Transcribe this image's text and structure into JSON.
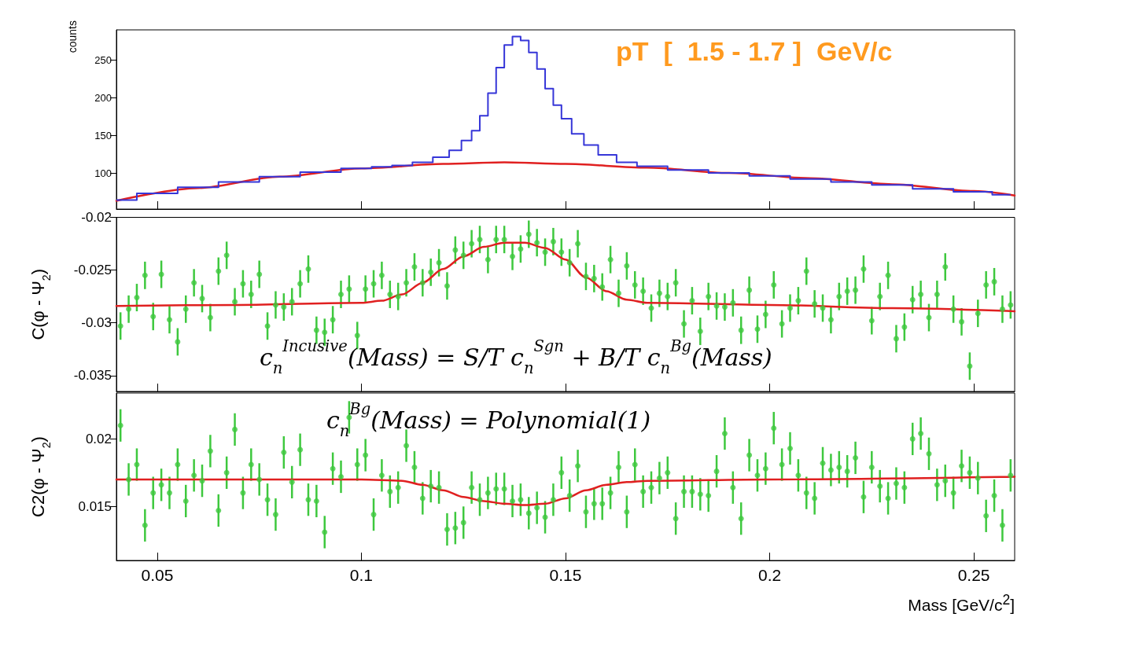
{
  "chart_data": [
    {
      "type": "step",
      "ylabel": "counts",
      "annotations": [
        "pT  [  1.5 - 1.7 ]  GeV/c"
      ],
      "xlim": [
        0.04,
        0.26
      ],
      "xticks": [
        0.05,
        0.1,
        0.15,
        0.2,
        0.25
      ],
      "ylim": [
        52,
        290
      ],
      "yticks": [
        100,
        150,
        200,
        250
      ],
      "tick_labels": "y",
      "series": [
        {
          "color": "#3636d8",
          "x": [
            0.04,
            0.05,
            0.06,
            0.07,
            0.08,
            0.09,
            0.1,
            0.105,
            0.11,
            0.115,
            0.12,
            0.123,
            0.126,
            0.128,
            0.13,
            0.132,
            0.134,
            0.136,
            0.138,
            0.14,
            0.142,
            0.144,
            0.146,
            0.148,
            0.15,
            0.153,
            0.156,
            0.16,
            0.165,
            0.17,
            0.18,
            0.19,
            0.2,
            0.21,
            0.22,
            0.23,
            0.24,
            0.25,
            0.259
          ],
          "values": [
            64,
            73,
            81,
            88,
            95,
            101,
            106,
            108,
            110,
            114,
            121,
            130,
            143,
            156,
            176,
            206,
            240,
            270,
            281,
            276,
            260,
            238,
            212,
            190,
            172,
            152,
            137,
            124,
            114,
            109,
            104,
            100,
            96,
            92,
            88,
            84,
            79,
            75,
            71
          ]
        },
        {
          "type": "line",
          "color": "#e02020",
          "x": [
            0.04,
            0.06,
            0.08,
            0.1,
            0.12,
            0.135,
            0.15,
            0.17,
            0.19,
            0.21,
            0.23,
            0.25,
            0.26
          ],
          "values": [
            63,
            80,
            95,
            106,
            112,
            114,
            112,
            107,
            100,
            93,
            85,
            76,
            70
          ]
        }
      ]
    },
    {
      "type": "scatter",
      "ylabel": "C(φ - Ψ$_{2}$)",
      "annotations": [
        "c$_{n}$$^{Incusive}$(Mass) = S/T c$_{n}$$^{Sgn}$ + B/T c$_{n}$$^{Bg}$(Mass)"
      ],
      "xlim": [
        0.04,
        0.26
      ],
      "xticks": [
        0.05,
        0.1,
        0.15,
        0.2,
        0.25
      ],
      "ylim": [
        -0.0365,
        -0.02
      ],
      "yticks": [
        -0.02,
        -0.025,
        -0.03,
        -0.035
      ],
      "tick_labels": "y",
      "x": [
        0.041,
        0.043,
        0.045,
        0.047,
        0.049,
        0.051,
        0.053,
        0.055,
        0.057,
        0.059,
        0.061,
        0.063,
        0.065,
        0.067,
        0.069,
        0.071,
        0.073,
        0.075,
        0.077,
        0.079,
        0.081,
        0.083,
        0.085,
        0.087,
        0.089,
        0.091,
        0.093,
        0.095,
        0.097,
        0.099,
        0.101,
        0.103,
        0.105,
        0.107,
        0.109,
        0.111,
        0.113,
        0.115,
        0.117,
        0.119,
        0.121,
        0.123,
        0.125,
        0.127,
        0.129,
        0.131,
        0.133,
        0.135,
        0.137,
        0.139,
        0.141,
        0.143,
        0.145,
        0.147,
        0.149,
        0.151,
        0.153,
        0.155,
        0.157,
        0.159,
        0.161,
        0.163,
        0.165,
        0.167,
        0.169,
        0.171,
        0.173,
        0.175,
        0.177,
        0.179,
        0.181,
        0.183,
        0.185,
        0.187,
        0.189,
        0.191,
        0.193,
        0.195,
        0.197,
        0.199,
        0.201,
        0.203,
        0.205,
        0.207,
        0.209,
        0.211,
        0.213,
        0.215,
        0.217,
        0.219,
        0.221,
        0.223,
        0.225,
        0.227,
        0.229,
        0.231,
        0.233,
        0.235,
        0.237,
        0.239,
        0.241,
        0.243,
        0.245,
        0.247,
        0.249,
        0.251,
        0.253,
        0.255,
        0.257,
        0.259
      ],
      "series": [
        {
          "color": "#3ec83e",
          "values": [
            -0.0303,
            -0.0287,
            -0.0276,
            -0.0255,
            -0.0294,
            -0.0254,
            -0.0297,
            -0.0318,
            -0.0287,
            -0.0262,
            -0.0277,
            -0.0295,
            -0.0251,
            -0.0236,
            -0.028,
            -0.0263,
            -0.0273,
            -0.0254,
            -0.0303,
            -0.0283,
            -0.0285,
            -0.028,
            -0.0263,
            -0.0249,
            -0.0307,
            -0.0309,
            -0.0297,
            -0.0273,
            -0.0268,
            -0.0312,
            -0.0268,
            -0.0263,
            -0.0255,
            -0.0273,
            -0.0275,
            -0.0262,
            -0.0247,
            -0.0262,
            -0.0252,
            -0.0243,
            -0.0265,
            -0.0231,
            -0.0236,
            -0.0225,
            -0.0221,
            -0.024,
            -0.0221,
            -0.0221,
            -0.0237,
            -0.023,
            -0.0216,
            -0.0224,
            -0.0233,
            -0.0223,
            -0.0233,
            -0.0243,
            -0.0225,
            -0.0256,
            -0.0258,
            -0.0266,
            -0.024,
            -0.0272,
            -0.0246,
            -0.0264,
            -0.027,
            -0.0286,
            -0.0272,
            -0.0275,
            -0.0262,
            -0.0301,
            -0.0279,
            -0.0308,
            -0.0275,
            -0.0284,
            -0.0285,
            -0.0281,
            -0.0307,
            -0.0269,
            -0.0306,
            -0.0292,
            -0.0264,
            -0.0301,
            -0.0286,
            -0.0279,
            -0.0251,
            -0.0282,
            -0.0286,
            -0.0297,
            -0.0275,
            -0.027,
            -0.0269,
            -0.0249,
            -0.0298,
            -0.0275,
            -0.0255,
            -0.0315,
            -0.0304,
            -0.0278,
            -0.0273,
            -0.0295,
            -0.0273,
            -0.0247,
            -0.0287,
            -0.0299,
            -0.0341,
            -0.0291,
            -0.0264,
            -0.0261,
            -0.0287,
            -0.0283
          ],
          "errors": [
            0.0013,
            0.0013,
            0.0013,
            0.0013,
            0.0013,
            0.0013,
            0.0013,
            0.0013,
            0.0013,
            0.0013,
            0.0013,
            0.0013,
            0.0013,
            0.0013,
            0.0013,
            0.0013,
            0.0013,
            0.0013,
            0.0013,
            0.0013,
            0.0013,
            0.0013,
            0.0013,
            0.0013,
            0.0013,
            0.0013,
            0.0013,
            0.0013,
            0.0013,
            0.0013,
            0.0013,
            0.0013,
            0.0013,
            0.0013,
            0.0013,
            0.0013,
            0.0013,
            0.0013,
            0.0013,
            0.0013,
            0.0013,
            0.0013,
            0.0013,
            0.0013,
            0.0013,
            0.0013,
            0.0013,
            0.0013,
            0.0013,
            0.0013,
            0.0013,
            0.0013,
            0.0013,
            0.0013,
            0.0013,
            0.0013,
            0.0013,
            0.0013,
            0.0013,
            0.0013,
            0.0013,
            0.0013,
            0.0013,
            0.0013,
            0.0013,
            0.0013,
            0.0013,
            0.0013,
            0.0013,
            0.0013,
            0.0013,
            0.0013,
            0.0013,
            0.0013,
            0.0013,
            0.0013,
            0.0013,
            0.0013,
            0.0013,
            0.0013,
            0.0013,
            0.0013,
            0.0013,
            0.0013,
            0.0013,
            0.0013,
            0.0013,
            0.0013,
            0.0013,
            0.0013,
            0.0013,
            0.0013,
            0.0013,
            0.0013,
            0.0013,
            0.0013,
            0.0013,
            0.0013,
            0.0013,
            0.0013,
            0.0013,
            0.0013,
            0.0013,
            0.0013,
            0.0013,
            0.0013,
            0.0013,
            0.0013,
            0.0013,
            0.0013
          ]
        },
        {
          "type": "line",
          "color": "#e02020",
          "x": [
            0.04,
            0.07,
            0.1,
            0.105,
            0.11,
            0.115,
            0.12,
            0.125,
            0.13,
            0.135,
            0.14,
            0.145,
            0.15,
            0.155,
            0.16,
            0.165,
            0.17,
            0.2,
            0.23,
            0.26
          ],
          "values": [
            -0.0284,
            -0.0283,
            -0.0281,
            -0.0279,
            -0.0273,
            -0.0262,
            -0.0249,
            -0.0237,
            -0.0228,
            -0.0224,
            -0.0224,
            -0.0229,
            -0.024,
            -0.0257,
            -0.027,
            -0.0278,
            -0.0281,
            -0.0283,
            -0.0286,
            -0.0289
          ]
        }
      ]
    },
    {
      "type": "scatter",
      "ylabel": "C2(φ - Ψ$_{2}$)",
      "xlabel": "Mass  [GeV/c$^{2}$]",
      "annotations": [
        "c$_{n}$$^{Bg}$(Mass) = Polynomial(1)"
      ],
      "xlim": [
        0.04,
        0.26
      ],
      "xticks": [
        0.05,
        0.1,
        0.15,
        0.2,
        0.25
      ],
      "ylim": [
        0.011,
        0.0234
      ],
      "yticks": [
        0.015,
        0.02
      ],
      "x": [
        0.041,
        0.043,
        0.045,
        0.047,
        0.049,
        0.051,
        0.053,
        0.055,
        0.057,
        0.059,
        0.061,
        0.063,
        0.065,
        0.067,
        0.069,
        0.071,
        0.073,
        0.075,
        0.077,
        0.079,
        0.081,
        0.083,
        0.085,
        0.087,
        0.089,
        0.091,
        0.093,
        0.095,
        0.097,
        0.099,
        0.101,
        0.103,
        0.105,
        0.107,
        0.109,
        0.111,
        0.113,
        0.115,
        0.117,
        0.119,
        0.121,
        0.123,
        0.125,
        0.127,
        0.129,
        0.131,
        0.133,
        0.135,
        0.137,
        0.139,
        0.141,
        0.143,
        0.145,
        0.147,
        0.149,
        0.151,
        0.153,
        0.155,
        0.157,
        0.159,
        0.161,
        0.163,
        0.165,
        0.167,
        0.169,
        0.171,
        0.173,
        0.175,
        0.177,
        0.179,
        0.181,
        0.183,
        0.185,
        0.187,
        0.189,
        0.191,
        0.193,
        0.195,
        0.197,
        0.199,
        0.201,
        0.203,
        0.205,
        0.207,
        0.209,
        0.211,
        0.213,
        0.215,
        0.217,
        0.219,
        0.221,
        0.223,
        0.225,
        0.227,
        0.229,
        0.231,
        0.233,
        0.235,
        0.237,
        0.239,
        0.241,
        0.243,
        0.245,
        0.247,
        0.249,
        0.251,
        0.253,
        0.255,
        0.257,
        0.259
      ],
      "series": [
        {
          "color": "#3ec83e",
          "values": [
            0.021,
            0.017,
            0.0181,
            0.0136,
            0.016,
            0.0166,
            0.016,
            0.0181,
            0.0154,
            0.0173,
            0.0169,
            0.0191,
            0.0147,
            0.0175,
            0.0207,
            0.016,
            0.0181,
            0.017,
            0.0155,
            0.0144,
            0.019,
            0.0168,
            0.0192,
            0.0155,
            0.0154,
            0.0131,
            0.0178,
            0.0172,
            0.0216,
            0.0181,
            0.0188,
            0.0144,
            0.0173,
            0.0161,
            0.0164,
            0.0195,
            0.0179,
            0.0156,
            0.0165,
            0.0164,
            0.0133,
            0.0134,
            0.0138,
            0.0164,
            0.0155,
            0.016,
            0.0163,
            0.0163,
            0.0154,
            0.0155,
            0.0145,
            0.0149,
            0.0142,
            0.0155,
            0.0175,
            0.0158,
            0.018,
            0.0146,
            0.0152,
            0.0152,
            0.016,
            0.0179,
            0.0146,
            0.0181,
            0.0161,
            0.0164,
            0.0171,
            0.0175,
            0.0141,
            0.0161,
            0.0161,
            0.0159,
            0.0158,
            0.0176,
            0.0204,
            0.0164,
            0.0141,
            0.0188,
            0.0173,
            0.0178,
            0.0208,
            0.0181,
            0.0193,
            0.0173,
            0.016,
            0.0156,
            0.0182,
            0.0177,
            0.0179,
            0.0176,
            0.0186,
            0.0157,
            0.0179,
            0.0165,
            0.0156,
            0.0167,
            0.0164,
            0.02,
            0.0204,
            0.0189,
            0.0166,
            0.0169,
            0.016,
            0.018,
            0.0175,
            0.0171,
            0.0143,
            0.0158,
            0.0136,
            0.0173
          ],
          "errors": [
            0.0012,
            0.0012,
            0.0012,
            0.0012,
            0.0012,
            0.0012,
            0.0012,
            0.0012,
            0.0012,
            0.0012,
            0.0012,
            0.0012,
            0.0012,
            0.0012,
            0.0012,
            0.0012,
            0.0012,
            0.0012,
            0.0012,
            0.0012,
            0.0012,
            0.0012,
            0.0012,
            0.0012,
            0.0012,
            0.0012,
            0.0012,
            0.0012,
            0.0012,
            0.0012,
            0.0012,
            0.0012,
            0.0012,
            0.0012,
            0.0012,
            0.0012,
            0.0012,
            0.0012,
            0.0012,
            0.0012,
            0.0012,
            0.0012,
            0.0012,
            0.0012,
            0.0012,
            0.0012,
            0.0012,
            0.0012,
            0.0012,
            0.0012,
            0.0012,
            0.0012,
            0.0012,
            0.0012,
            0.0012,
            0.0012,
            0.0012,
            0.0012,
            0.0012,
            0.0012,
            0.0012,
            0.0012,
            0.0012,
            0.0012,
            0.0012,
            0.0012,
            0.0012,
            0.0012,
            0.0012,
            0.0012,
            0.0012,
            0.0012,
            0.0012,
            0.0012,
            0.0012,
            0.0012,
            0.0012,
            0.0012,
            0.0012,
            0.0012,
            0.0012,
            0.0012,
            0.0012,
            0.0012,
            0.0012,
            0.0012,
            0.0012,
            0.0012,
            0.0012,
            0.0012,
            0.0012,
            0.0012,
            0.0012,
            0.0012,
            0.0012,
            0.0012,
            0.0012,
            0.0012,
            0.0012,
            0.0012,
            0.0012,
            0.0012,
            0.0012,
            0.0012,
            0.0012,
            0.0012,
            0.0012,
            0.0012,
            0.0012,
            0.0012
          ]
        },
        {
          "type": "line",
          "color": "#e02020",
          "x": [
            0.04,
            0.1,
            0.11,
            0.115,
            0.12,
            0.125,
            0.13,
            0.135,
            0.14,
            0.145,
            0.15,
            0.155,
            0.16,
            0.165,
            0.17,
            0.2,
            0.26
          ],
          "values": [
            0.017,
            0.017,
            0.0169,
            0.0166,
            0.0162,
            0.0157,
            0.0154,
            0.0152,
            0.0151,
            0.0152,
            0.0156,
            0.0162,
            0.0166,
            0.0168,
            0.0169,
            0.017,
            0.0172
          ]
        }
      ]
    }
  ]
}
